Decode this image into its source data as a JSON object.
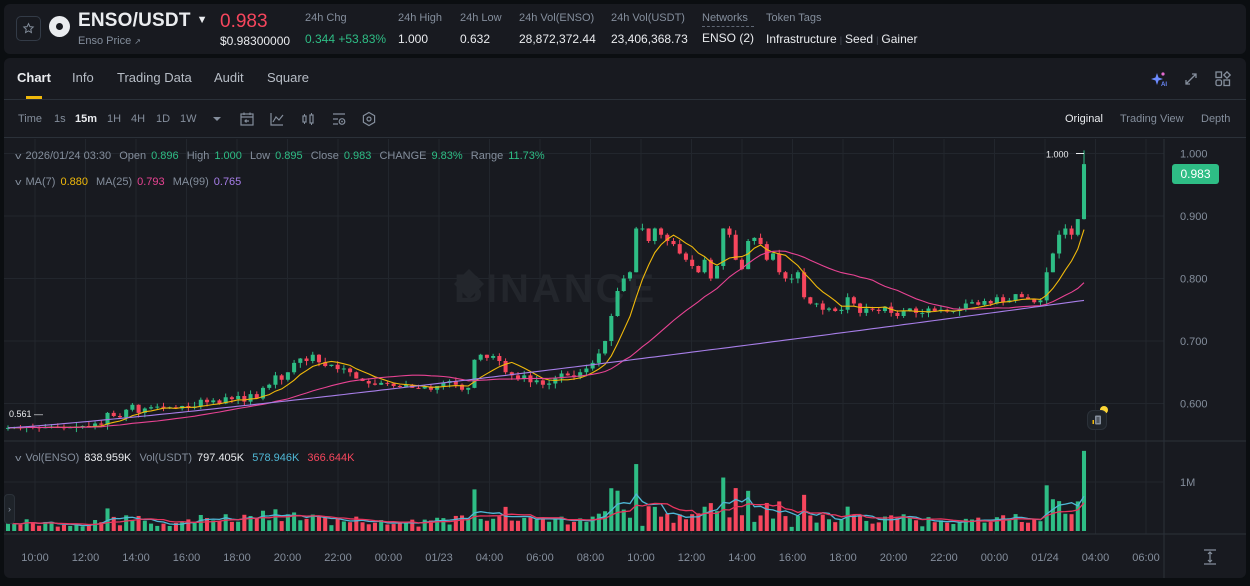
{
  "header": {
    "pair": "ENSO/USDT",
    "subtitle": "Enso Price",
    "subtitle_icon": "external-link-arrow",
    "last_price": "0.983",
    "last_price_usd": "$0.98300000",
    "stats": [
      {
        "label": "24h Chg",
        "value": "0.344 +53.83%",
        "color": "#2ebd85"
      },
      {
        "label": "24h High",
        "value": "1.000"
      },
      {
        "label": "24h Low",
        "value": "0.632"
      },
      {
        "label": "24h Vol(ENSO)",
        "value": "28,872,372.44"
      },
      {
        "label": "24h Vol(USDT)",
        "value": "23,406,368.73"
      },
      {
        "label": "Networks",
        "value": "ENSO (2)"
      }
    ],
    "token_tags_label": "Token Tags",
    "token_tags": [
      "Infrastructure",
      "Seed",
      "Gainer"
    ]
  },
  "tabs": [
    "Chart",
    "Info",
    "Trading Data",
    "Audit",
    "Square"
  ],
  "active_tab": "Chart",
  "toolbar": {
    "intervals": [
      "Time",
      "1s",
      "15m",
      "1H",
      "4H",
      "1D",
      "1W"
    ],
    "active_interval": "15m",
    "icons": [
      "chevron-down-icon",
      "calendar-icon",
      "indicator-icon",
      "candle-type-icon",
      "settings-list-icon",
      "hexagon-settings-icon"
    ],
    "views": [
      "Original",
      "Trading View",
      "Depth"
    ],
    "active_view": "Original"
  },
  "legend": {
    "ohlc": {
      "date": "2026/01/24 03:30",
      "open_label": "Open",
      "open": "0.896",
      "high_label": "High",
      "high": "1.000",
      "low_label": "Low",
      "low": "0.895",
      "close_label": "Close",
      "close": "0.983",
      "change_label": "CHANGE",
      "change": "9.83%",
      "range_label": "Range",
      "range": "11.73%"
    },
    "ma": {
      "ma7_label": "MA(7)",
      "ma7": "0.880",
      "ma25_label": "MA(25)",
      "ma25": "0.793",
      "ma99_label": "MA(99)",
      "ma99": "0.765"
    },
    "volume": {
      "vol_enso_label": "Vol(ENSO)",
      "vol_enso": "838.959K",
      "vol_usdt_label": "Vol(USDT)",
      "vol_usdt": "797.405K",
      "ma_short": "578.946K",
      "ma_long": "366.644K"
    }
  },
  "chart": {
    "current_price_tag": "0.983",
    "high_marker": "1.000",
    "low_marker": "0.561",
    "watermark": "BINANCE",
    "price_axis": [
      "1.000",
      "0.900",
      "0.800",
      "0.700",
      "0.600"
    ],
    "volume_axis": [
      "1M"
    ],
    "time_axis": [
      "10:00",
      "12:00",
      "14:00",
      "16:00",
      "18:00",
      "20:00",
      "22:00",
      "00:00",
      "01/23",
      "04:00",
      "06:00",
      "08:00",
      "10:00",
      "12:00",
      "14:00",
      "16:00",
      "18:00",
      "20:00",
      "22:00",
      "00:00",
      "01/24",
      "04:00",
      "06:00"
    ],
    "colors": {
      "up": "#2ebd85",
      "down": "#f6465d",
      "ma7": "#f0b90b",
      "ma25": "#e84393",
      "ma99": "#a77ee8",
      "vol_ma_short": "#4fb8d6",
      "vol_ma_long": "#e8355e"
    }
  },
  "chart_data": {
    "type": "candlestick",
    "title": "ENSO/USDT 15m",
    "ylim": [
      0.54,
      1.02
    ],
    "closes": [
      0.561,
      0.562,
      0.561,
      0.563,
      0.562,
      0.561,
      0.562,
      0.563,
      0.562,
      0.561,
      0.562,
      0.563,
      0.564,
      0.563,
      0.568,
      0.566,
      0.585,
      0.58,
      0.578,
      0.59,
      0.598,
      0.585,
      0.592,
      0.594,
      0.595,
      0.593,
      0.594,
      0.592,
      0.596,
      0.593,
      0.595,
      0.606,
      0.602,
      0.605,
      0.6,
      0.61,
      0.607,
      0.612,
      0.603,
      0.615,
      0.608,
      0.625,
      0.63,
      0.645,
      0.638,
      0.65,
      0.665,
      0.672,
      0.668,
      0.678,
      0.666,
      0.66,
      0.662,
      0.655,
      0.656,
      0.65,
      0.64,
      0.636,
      0.632,
      0.63,
      0.633,
      0.632,
      0.628,
      0.627,
      0.63,
      0.625,
      0.624,
      0.627,
      0.622,
      0.628,
      0.633,
      0.636,
      0.63,
      0.622,
      0.625,
      0.67,
      0.678,
      0.673,
      0.676,
      0.668,
      0.65,
      0.645,
      0.64,
      0.645,
      0.634,
      0.637,
      0.63,
      0.632,
      0.64,
      0.648,
      0.645,
      0.642,
      0.65,
      0.656,
      0.665,
      0.68,
      0.7,
      0.74,
      0.78,
      0.8,
      0.81,
      0.88,
      0.88,
      0.86,
      0.88,
      0.87,
      0.86,
      0.855,
      0.84,
      0.83,
      0.82,
      0.81,
      0.83,
      0.8,
      0.82,
      0.88,
      0.87,
      0.83,
      0.815,
      0.86,
      0.865,
      0.855,
      0.83,
      0.84,
      0.81,
      0.8,
      0.8,
      0.81,
      0.77,
      0.76,
      0.76,
      0.75,
      0.752,
      0.748,
      0.75,
      0.77,
      0.76,
      0.745,
      0.752,
      0.75,
      0.748,
      0.755,
      0.745,
      0.74,
      0.748,
      0.752,
      0.745,
      0.745,
      0.752,
      0.748,
      0.75,
      0.747,
      0.748,
      0.752,
      0.76,
      0.762,
      0.758,
      0.764,
      0.76,
      0.77,
      0.762,
      0.765,
      0.775,
      0.77,
      0.767,
      0.762,
      0.765,
      0.81,
      0.84,
      0.87,
      0.88,
      0.87,
      0.895,
      0.983
    ],
    "ma_series": {
      "ma7_last": 0.88,
      "ma25_last": 0.793,
      "ma99_last": 0.765
    },
    "x_range": [
      "01/22 09:30",
      "01/24 03:30"
    ]
  }
}
